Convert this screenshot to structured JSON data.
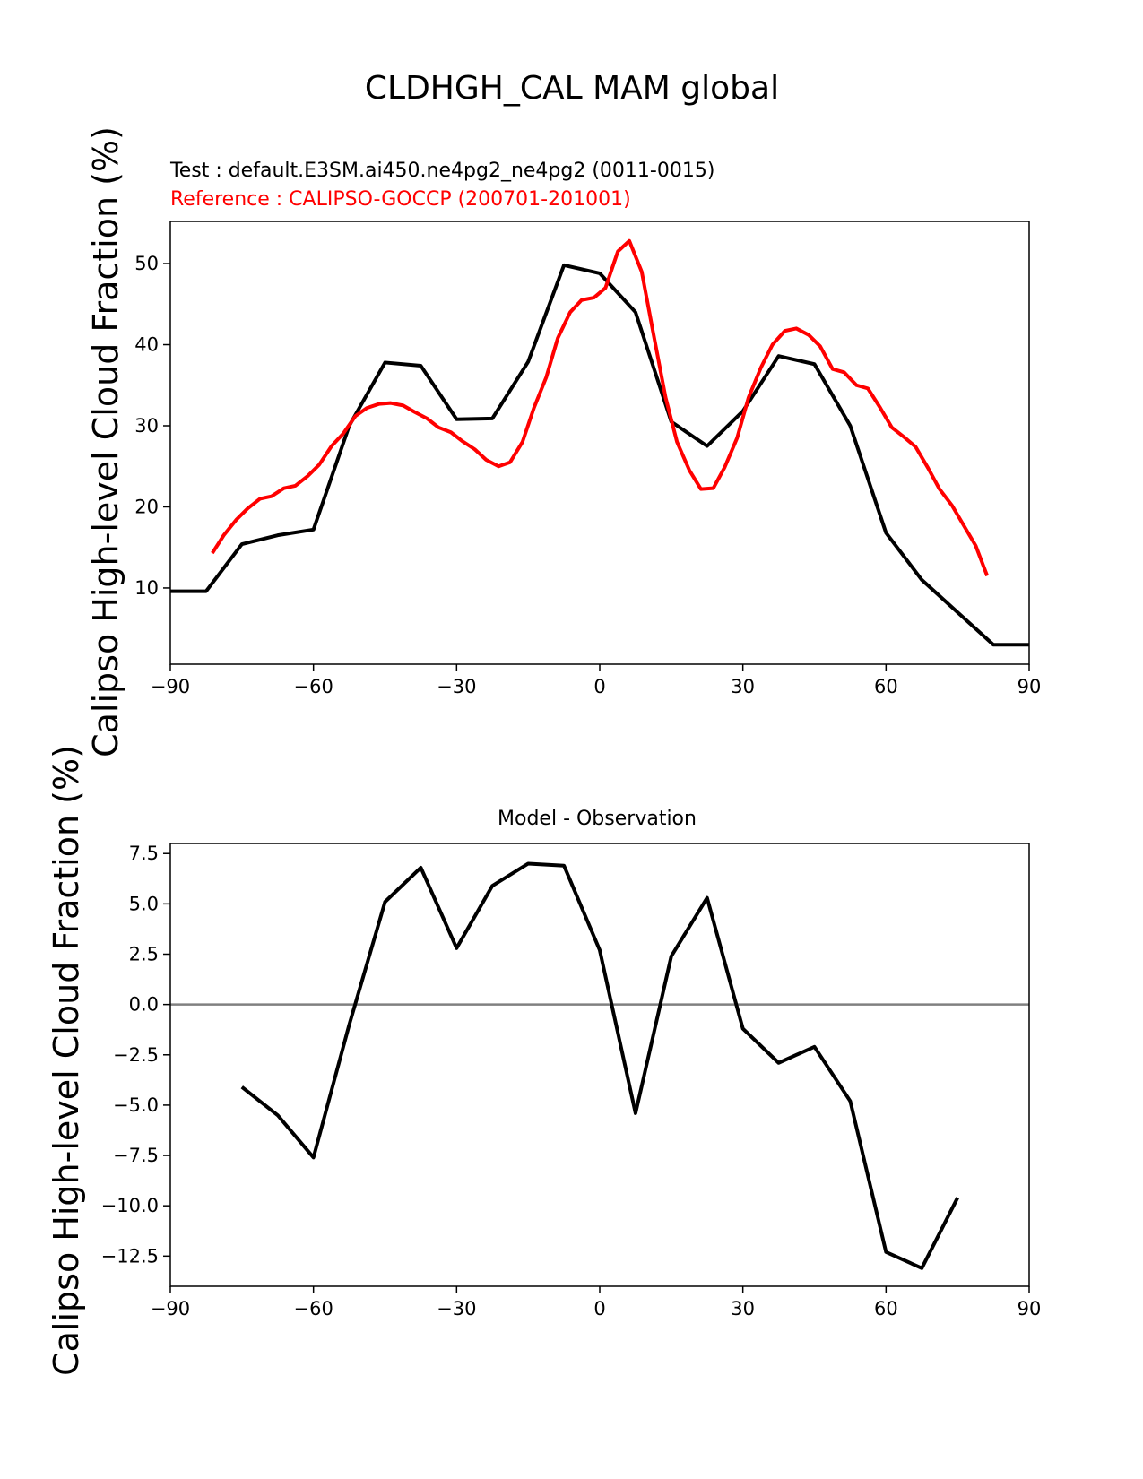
{
  "figure": {
    "suptitle": "CLDHGH_CAL MAM global"
  },
  "chart_data": [
    {
      "type": "line",
      "test_label": "Test : default.E3SM.ai450.ne4pg2_ne4pg2 (0011-0015)",
      "reference_label": "Reference : CALIPSO-GOCCP (200701-201001)",
      "title": "",
      "xlabel": "",
      "ylabel": "Calipso High-level Cloud Fraction (%)",
      "xlim": [
        -90,
        90
      ],
      "ylim": [
        0.6,
        55.2
      ],
      "xticks": [
        -90,
        -60,
        -30,
        0,
        30,
        60,
        90
      ],
      "xtick_labels": [
        "−90",
        "−60",
        "−30",
        "0",
        "30",
        "60",
        "90"
      ],
      "yticks": [
        10,
        20,
        30,
        40,
        50
      ],
      "ytick_labels": [
        "10",
        "20",
        "30",
        "40",
        "50"
      ],
      "series": [
        {
          "name": "Test",
          "color": "#000000",
          "x": [
            -90,
            -82.5,
            -75,
            -67.5,
            -60,
            -52.5,
            -45,
            -37.5,
            -30,
            -22.5,
            -15,
            -7.5,
            0,
            7.5,
            15,
            22.5,
            30,
            37.5,
            45,
            52.5,
            60,
            67.5,
            75,
            82.5,
            90
          ],
          "y": [
            9.6,
            9.6,
            15.4,
            16.5,
            17.2,
            30,
            37.8,
            37.4,
            30.8,
            30.9,
            37.9,
            49.8,
            48.8,
            44,
            30.5,
            27.5,
            31.8,
            38.6,
            37.6,
            30,
            16.8,
            11,
            7,
            3,
            3
          ]
        },
        {
          "name": "Reference",
          "color": "#ff0000",
          "x": [
            -81.2,
            -78.8,
            -76.2,
            -73.8,
            -71.2,
            -68.8,
            -66.2,
            -63.8,
            -61.2,
            -58.8,
            -56.2,
            -53.8,
            -51.2,
            -48.8,
            -46.2,
            -43.8,
            -41.2,
            -38.8,
            -36.2,
            -33.8,
            -31.2,
            -28.8,
            -26.2,
            -23.8,
            -21.2,
            -18.8,
            -16.2,
            -13.8,
            -11.2,
            -8.8,
            -6.2,
            -3.8,
            -1.2,
            1.2,
            3.8,
            6.2,
            8.8,
            11.2,
            13.8,
            16.2,
            18.8,
            21.2,
            23.8,
            26.2,
            28.8,
            31.2,
            33.8,
            36.2,
            38.8,
            41.2,
            43.8,
            46.2,
            48.8,
            51.2,
            53.8,
            56.2,
            58.8,
            61.2,
            63.8,
            66.2,
            68.8,
            71.2,
            73.8,
            76.2,
            78.8,
            81.2
          ],
          "y": [
            14.3,
            16.5,
            18.4,
            19.8,
            21,
            21.3,
            22.3,
            22.6,
            23.8,
            25.2,
            27.5,
            29,
            31.2,
            32.2,
            32.7,
            32.8,
            32.5,
            31.7,
            30.9,
            29.8,
            29.2,
            28.1,
            27.1,
            25.8,
            25,
            25.5,
            28,
            32.2,
            36,
            40.8,
            44,
            45.5,
            45.8,
            47,
            51.5,
            52.8,
            49,
            41.5,
            33.5,
            28,
            24.5,
            22.2,
            22.3,
            24.9,
            28.5,
            33.5,
            37.2,
            40,
            41.7,
            42,
            41.2,
            39.8,
            37,
            36.6,
            35,
            34.6,
            32.2,
            29.8,
            28.6,
            27.4,
            24.8,
            22.2,
            20.2,
            17.8,
            15.2,
            11.5
          ]
        }
      ]
    },
    {
      "type": "line",
      "title": "Model - Observation",
      "xlabel": "",
      "ylabel": "Calipso High-level Cloud Fraction (%)",
      "xlim": [
        -90,
        90
      ],
      "ylim": [
        -14,
        8
      ],
      "xticks": [
        -90,
        -60,
        -30,
        0,
        30,
        60,
        90
      ],
      "xtick_labels": [
        "−90",
        "−60",
        "−30",
        "0",
        "30",
        "60",
        "90"
      ],
      "yticks": [
        7.5,
        5,
        2.5,
        0,
        -2.5,
        -5,
        -7.5,
        -10,
        -12.5
      ],
      "ytick_labels": [
        "7.5",
        "5.0",
        "2.5",
        "0.0",
        "−2.5",
        "−5.0",
        "−7.5",
        "−10.0",
        "−12.5"
      ],
      "zero_line": {
        "y": 0,
        "color": "#808080"
      },
      "series": [
        {
          "name": "Model - Observation",
          "color": "#000000",
          "x": [
            -75,
            -67.5,
            -60,
            -52.5,
            -45,
            -37.5,
            -30,
            -22.5,
            -15,
            -7.5,
            0,
            7.5,
            15,
            22.5,
            30,
            37.5,
            45,
            52.5,
            60,
            67.5,
            75
          ],
          "y": [
            -4.1,
            -5.5,
            -7.6,
            -1,
            5.1,
            6.8,
            2.8,
            5.9,
            7.0,
            6.9,
            2.7,
            -5.4,
            2.4,
            5.3,
            -1.2,
            -2.9,
            -2.1,
            -4.8,
            -12.3,
            -13.1,
            -9.6
          ]
        }
      ]
    }
  ]
}
